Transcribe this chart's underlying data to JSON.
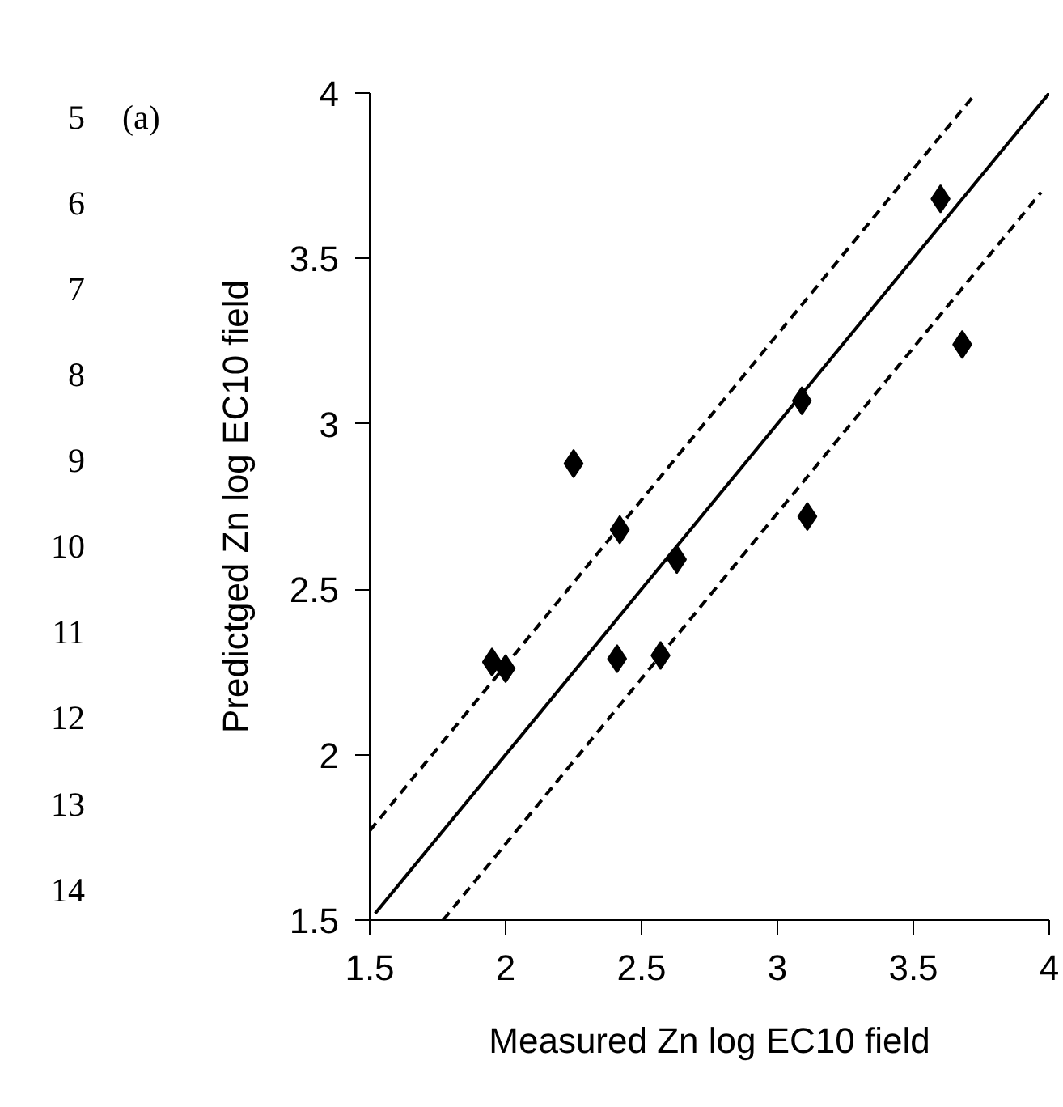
{
  "chart_data": {
    "type": "scatter",
    "xlabel": "Measured Zn log EC10 field",
    "ylabel": "Predictged Zn log EC10 field",
    "annotations": [
      "(a)",
      "5",
      "6",
      "7",
      "8",
      "9",
      "10",
      "11",
      "12",
      "13",
      "14"
    ],
    "xlim": [
      1.5,
      4
    ],
    "ylim": [
      1.5,
      4
    ],
    "xticks": [
      1.5,
      2,
      2.5,
      3,
      3.5,
      4
    ],
    "yticks": [
      1.5,
      2,
      2.5,
      3,
      3.5,
      4
    ],
    "grid": false,
    "series": [
      {
        "color": "#000000",
        "marker": "diamond",
        "x": [
          1.95,
          2.0,
          2.25,
          2.42,
          2.41,
          2.63,
          2.57,
          3.09,
          3.11,
          3.6,
          3.68
        ],
        "values": [
          2.28,
          2.26,
          2.88,
          2.68,
          2.29,
          2.59,
          2.3,
          3.07,
          2.72,
          3.68,
          3.24
        ]
      },
      {
        "type": "line",
        "color": "#000000",
        "line_style": "solid",
        "marker": "none",
        "x": [
          1.52,
          4.0
        ],
        "values": [
          1.52,
          4.0
        ]
      },
      {
        "type": "line",
        "color": "#000000",
        "line_style": "dashed",
        "marker": "none",
        "x": [
          1.5,
          3.73
        ],
        "values": [
          1.77,
          4.0
        ]
      },
      {
        "type": "line",
        "color": "#000000",
        "line_style": "dashed",
        "marker": "none",
        "x": [
          1.77,
          3.97
        ],
        "values": [
          1.5,
          3.7
        ]
      }
    ]
  }
}
